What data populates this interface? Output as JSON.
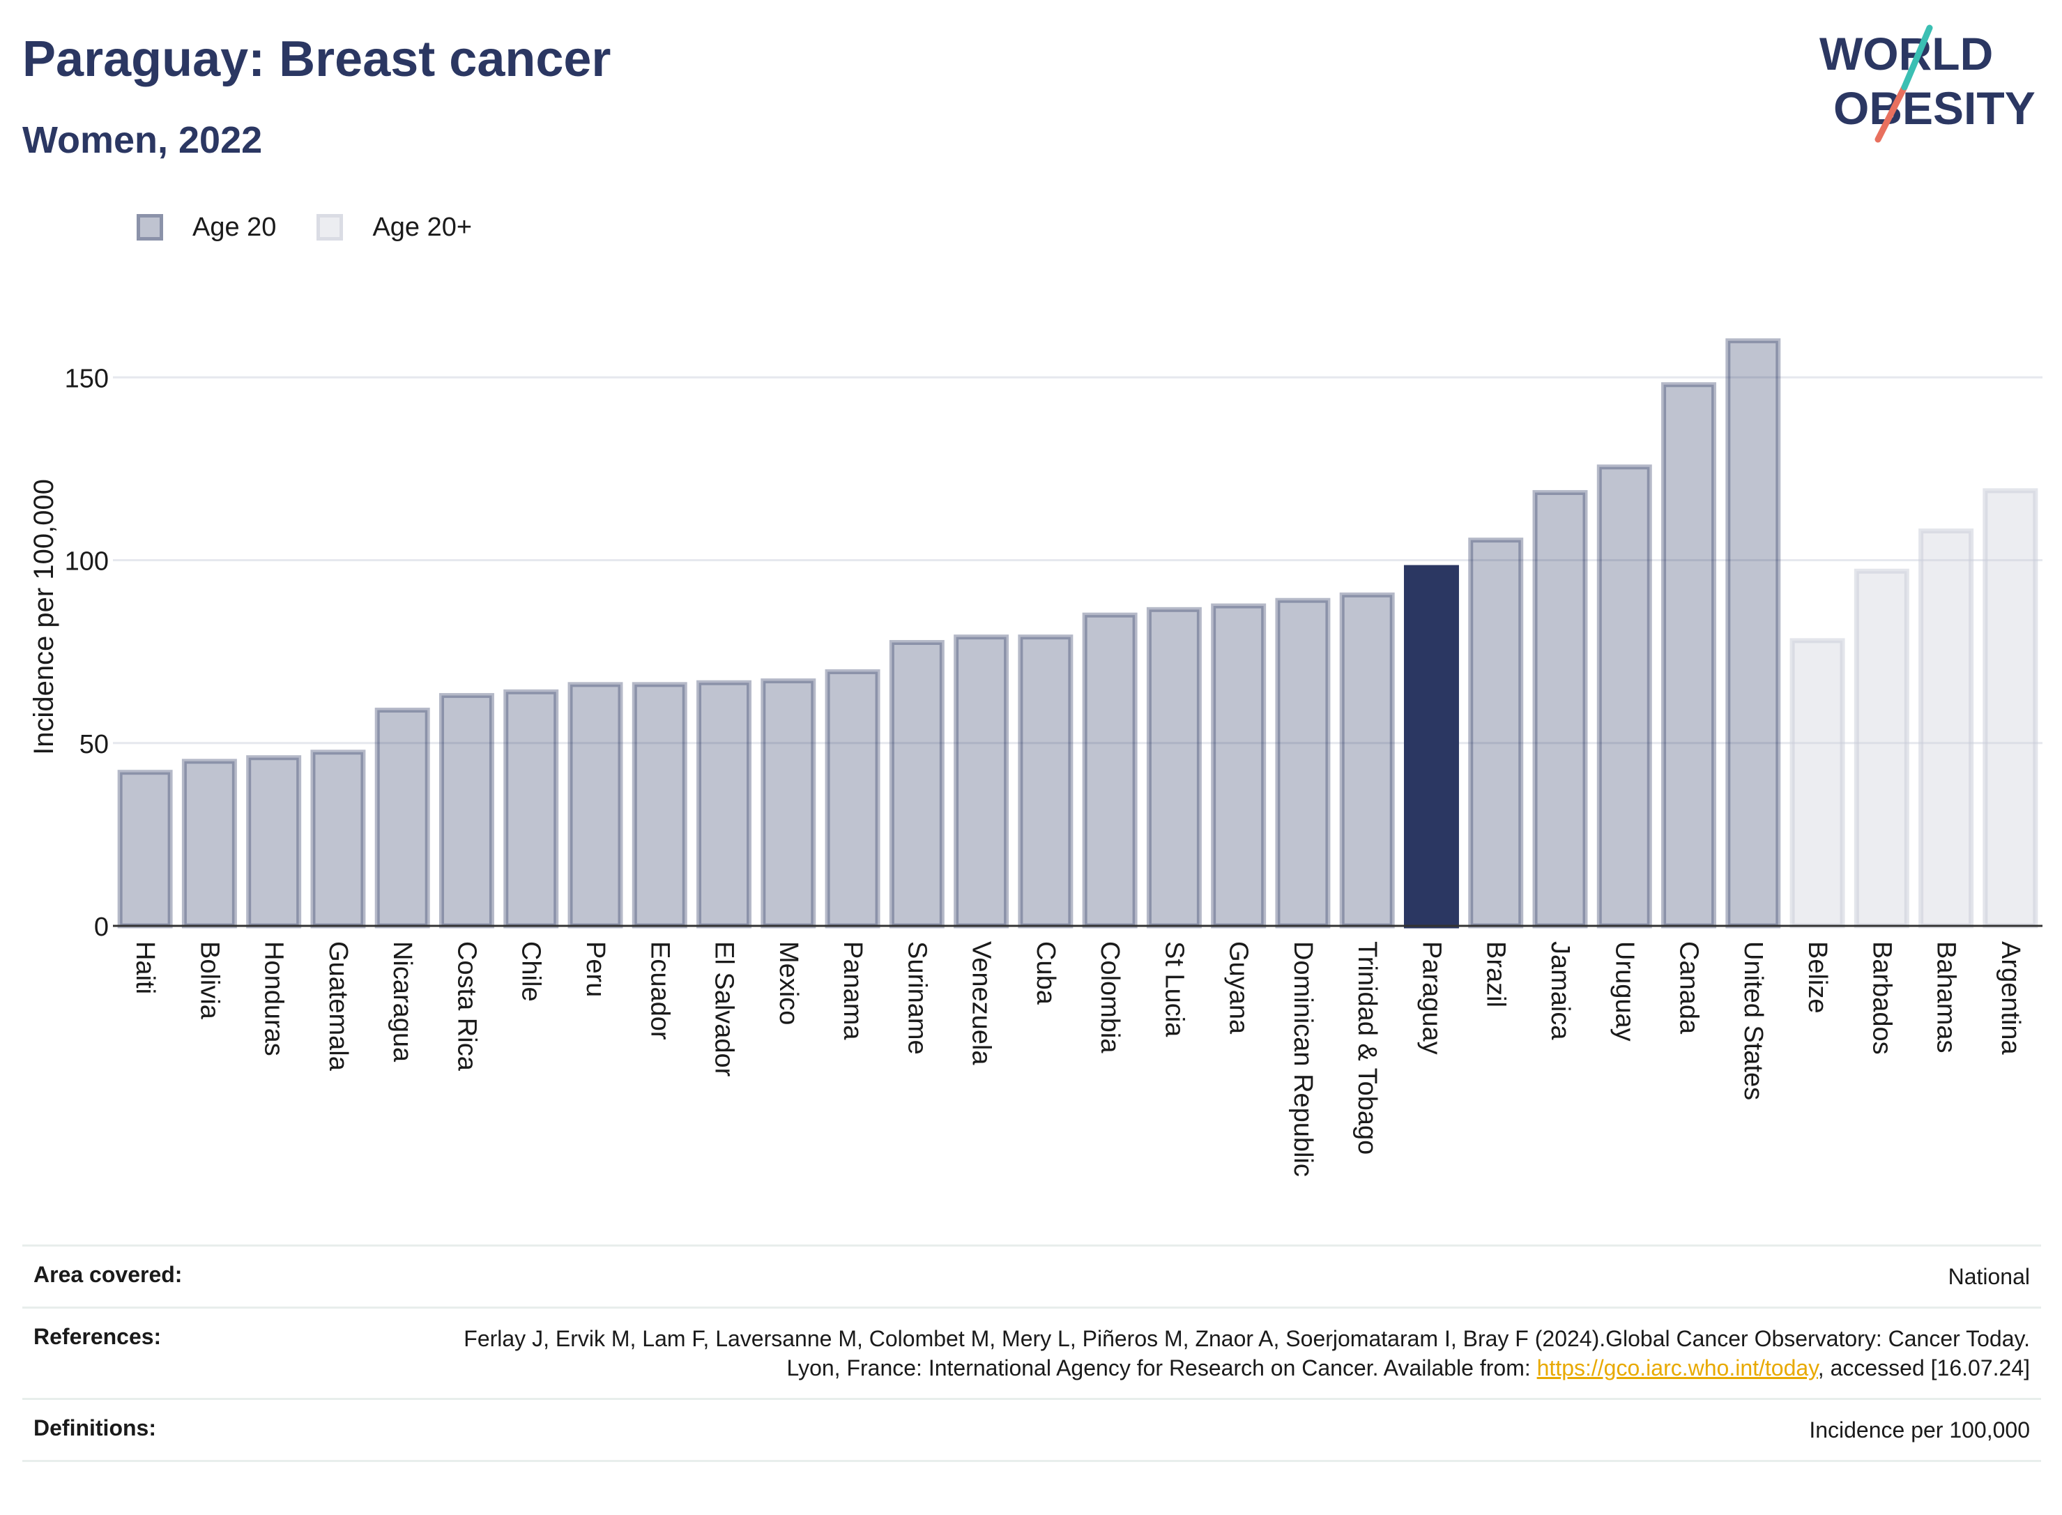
{
  "header": {
    "title": "Paraguay: Breast cancer",
    "subtitle": "Women, 2022",
    "logo_line1": "WORLD",
    "logo_line2": "OBESITY"
  },
  "legend": {
    "items": [
      {
        "label": "Age 20",
        "color": "#2b3762"
      },
      {
        "label": "Age 20+",
        "color": "#c8ccd8"
      }
    ]
  },
  "chart_data": {
    "type": "bar",
    "ylabel": "Incidence per 100,000",
    "xlabel": "",
    "ylim": [
      0,
      170
    ],
    "yticks": [
      0,
      50,
      100,
      150
    ],
    "grid": true,
    "legend_position": "top-left",
    "highlight": "Paraguay",
    "colors": {
      "age20": "#2b3762",
      "age20plus": "#c8ccd8",
      "highlight": "#2b3762"
    },
    "categories": [
      "Haiti",
      "Bolivia",
      "Honduras",
      "Guatemala",
      "Nicaragua",
      "Costa Rica",
      "Chile",
      "Peru",
      "Ecuador",
      "El Salvador",
      "Mexico",
      "Panama",
      "Suriname",
      "Venezuela",
      "Cuba",
      "Colombia",
      "St Lucia",
      "Guyana",
      "Dominican Republic",
      "Trinidad & Tobago",
      "Paraguay",
      "Brazil",
      "Jamaica",
      "Uruguay",
      "Canada",
      "United States",
      "Belize",
      "Barbados",
      "Bahamas",
      "Argentina"
    ],
    "values": [
      42,
      45,
      46,
      47.5,
      59,
      63,
      64,
      66,
      66,
      66.5,
      67,
      69.5,
      77.5,
      79,
      79,
      85,
      86.5,
      87.5,
      89,
      90.5,
      98,
      105.5,
      118.5,
      125.5,
      148,
      160,
      78,
      97,
      108,
      119
    ],
    "series_group": [
      "Age 20",
      "Age 20",
      "Age 20",
      "Age 20",
      "Age 20",
      "Age 20",
      "Age 20",
      "Age 20",
      "Age 20",
      "Age 20",
      "Age 20",
      "Age 20",
      "Age 20",
      "Age 20",
      "Age 20",
      "Age 20",
      "Age 20",
      "Age 20",
      "Age 20",
      "Age 20",
      "Age 20",
      "Age 20",
      "Age 20",
      "Age 20",
      "Age 20",
      "Age 20",
      "Age 20+",
      "Age 20+",
      "Age 20+",
      "Age 20+"
    ]
  },
  "info": {
    "area_label": "Area covered:",
    "area_value": "National",
    "references_label": "References:",
    "references_text": "Ferlay J, Ervik M, Lam F, Laversanne M, Colombet M, Mery L, Piñeros M, Znaor A, Soerjomataram I, Bray F (2024).Global Cancer Observatory: Cancer Today. Lyon, France: International Agency for Research on Cancer. Available from:",
    "references_link": "https://gco.iarc.who.int/today",
    "references_tail": ", accessed [16.07.24]",
    "definitions_label": "Definitions:",
    "definitions_value": "Incidence per 100,000"
  }
}
